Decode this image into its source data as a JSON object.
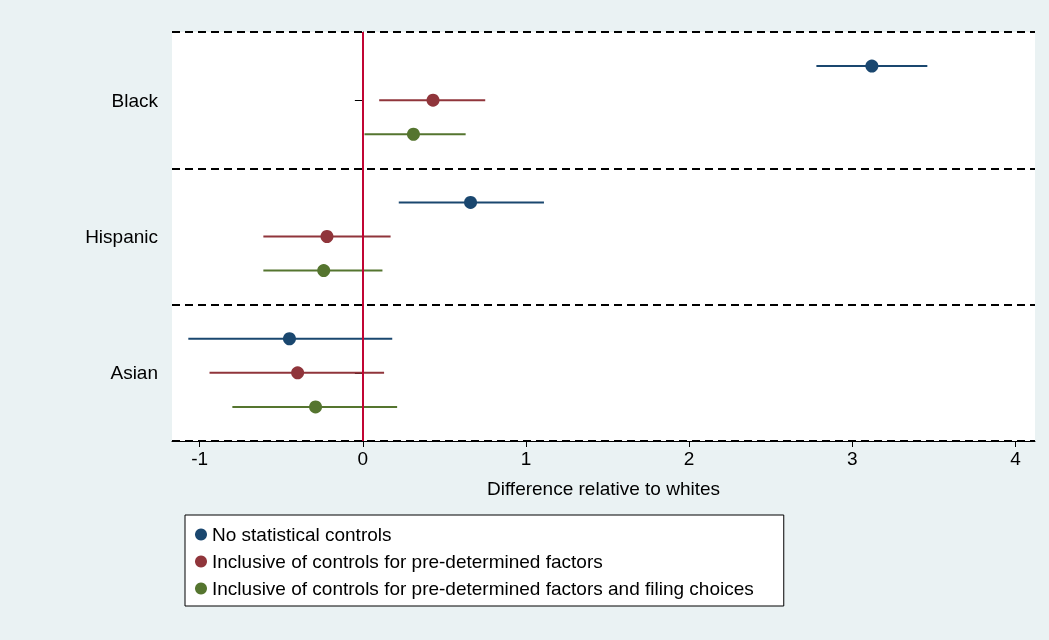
{
  "chart_data": {
    "type": "scatter",
    "orientation": "horizontal",
    "xlabel": "Difference relative to whites",
    "categories": [
      "Black",
      "Hispanic",
      "Asian"
    ],
    "series": [
      {
        "name": "No statistical controls",
        "color": "#1a476f",
        "values": [
          3.12,
          0.66,
          -0.45
        ],
        "errors": [
          [
            2.78,
            3.46
          ],
          [
            0.22,
            1.11
          ],
          [
            -1.07,
            0.18
          ]
        ]
      },
      {
        "name": "Inclusive of controls for pre-determined factors",
        "color": "#90353b",
        "values": [
          0.43,
          -0.22,
          -0.4
        ],
        "errors": [
          [
            0.1,
            0.75
          ],
          [
            -0.61,
            0.17
          ],
          [
            -0.94,
            0.13
          ]
        ]
      },
      {
        "name": "Inclusive of controls for pre-determined factors and filing choices",
        "color": "#55752f",
        "values": [
          0.31,
          -0.24,
          -0.29
        ],
        "errors": [
          [
            0.01,
            0.63
          ],
          [
            -0.61,
            0.12
          ],
          [
            -0.8,
            0.21
          ]
        ]
      }
    ],
    "xlim": [
      -1.17,
      4.12
    ],
    "xticks": [
      -1,
      0,
      1,
      2,
      3,
      4
    ],
    "ref_lines": [
      {
        "axis": "x",
        "value": 0,
        "color": "#c10534"
      }
    ],
    "grid": "y",
    "legend": "bottom",
    "marker": "circle"
  }
}
